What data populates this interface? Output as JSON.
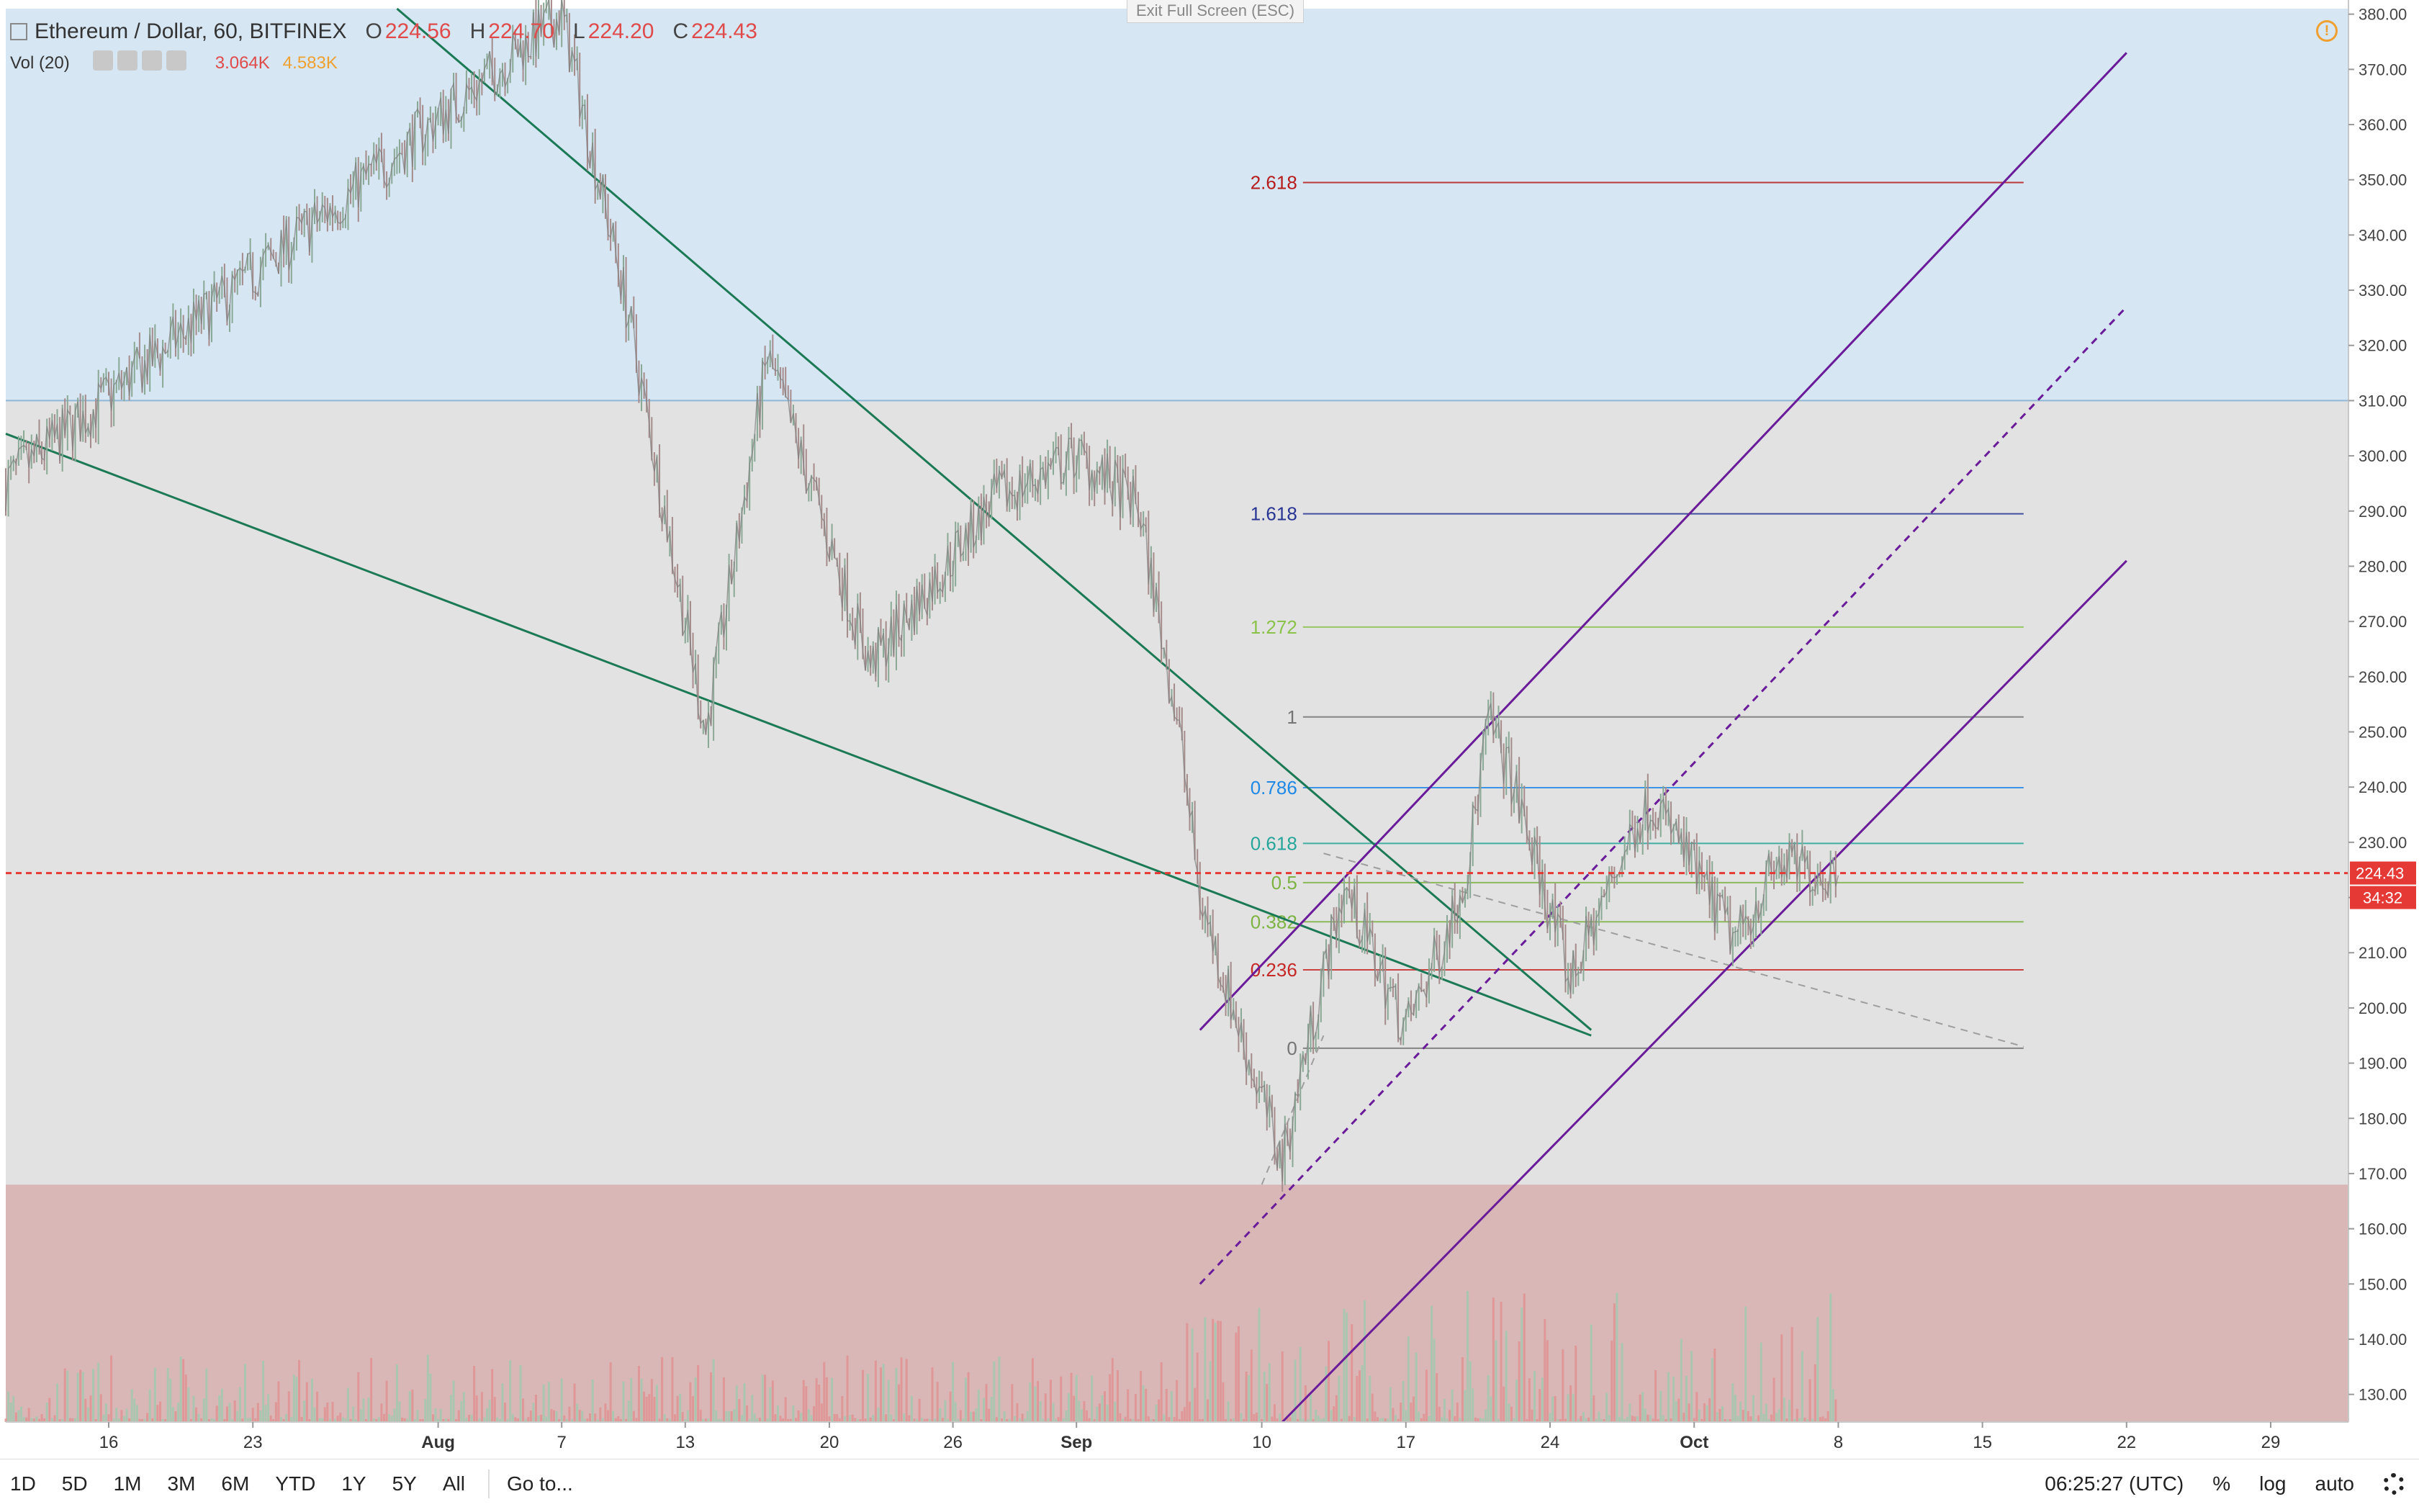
{
  "header": {
    "symbol": "Ethereum / Dollar, 60, BITFINEX",
    "o_label": "O",
    "o_value": "224.56",
    "h_label": "H",
    "h_value": "224.70",
    "l_label": "L",
    "l_value": "224.20",
    "c_label": "C",
    "c_value": "224.43",
    "vol_label": "Vol (20)",
    "vol_value1": "3.064K",
    "vol_value2": "4.583K",
    "exit_fullscreen": "Exit Full Screen (ESC)",
    "alert_icon": "warning-icon"
  },
  "bottom_bar": {
    "ranges": [
      "1D",
      "5D",
      "1M",
      "3M",
      "6M",
      "YTD",
      "1Y",
      "5Y",
      "All"
    ],
    "goto": "Go to...",
    "time": "06:25:27 (UTC)",
    "percent": "%",
    "log": "log",
    "auto": "auto",
    "settings_icon": "gear-icon"
  },
  "chart_data": {
    "type": "line",
    "x": [
      "2018-07-11",
      "2018-08-07",
      "2018-08-10",
      "2018-08-14",
      "2018-08-17",
      "2018-08-22",
      "2018-08-28",
      "2018-09-01",
      "2018-09-04",
      "2018-09-06",
      "2018-09-07",
      "2018-09-09",
      "2018-09-11",
      "2018-09-12",
      "2018-09-14",
      "2018-09-17",
      "2018-09-19",
      "2018-09-20",
      "2018-09-21",
      "2018-09-22",
      "2018-09-25",
      "2018-09-28",
      "2018-09-29",
      "2018-10-03",
      "2018-10-05",
      "2018-10-08"
    ],
    "series": [
      {
        "values": [
          295,
          380,
          330,
          250,
          318,
          262,
          292,
          300,
          291,
          250,
          220,
          195,
          172,
          190,
          222,
          196,
          214,
          226,
          252,
          243,
          205,
          232,
          238,
          212,
          226,
          224
        ]
      }
    ],
    "last_price": "224.43",
    "countdown": "34:32",
    "ylim": [
      125,
      381
    ],
    "yticks": [
      "380.00",
      "370.00",
      "360.00",
      "350.00",
      "340.00",
      "330.00",
      "320.00",
      "310.00",
      "300.00",
      "290.00",
      "280.00",
      "270.00",
      "260.00",
      "250.00",
      "240.00",
      "230.00",
      "220.00",
      "210.00",
      "200.00",
      "190.00",
      "180.00",
      "170.00",
      "160.00",
      "150.00",
      "140.00",
      "130.00"
    ],
    "xticks": [
      {
        "label": "16",
        "date": "2018-07-16"
      },
      {
        "label": "23",
        "date": "2018-07-23"
      },
      {
        "label": "Aug",
        "date": "2018-08-01"
      },
      {
        "label": "7",
        "date": "2018-08-07"
      },
      {
        "label": "13",
        "date": "2018-08-13"
      },
      {
        "label": "20",
        "date": "2018-08-20"
      },
      {
        "label": "26",
        "date": "2018-08-26"
      },
      {
        "label": "Sep",
        "date": "2018-09-01"
      },
      {
        "label": "10",
        "date": "2018-09-10"
      },
      {
        "label": "17",
        "date": "2018-09-17"
      },
      {
        "label": "24",
        "date": "2018-09-24"
      },
      {
        "label": "Oct",
        "date": "2018-10-01"
      },
      {
        "label": "8",
        "date": "2018-10-08"
      },
      {
        "label": "15",
        "date": "2018-10-15"
      },
      {
        "label": "22",
        "date": "2018-10-22"
      },
      {
        "label": "29",
        "date": "2018-10-29"
      }
    ],
    "zones": [
      {
        "from": 310,
        "to": 381,
        "color": "#d6e6f2"
      },
      {
        "from": 168,
        "to": 310,
        "color": "#e2e2e2"
      },
      {
        "from": 125,
        "to": 168,
        "color": "#d9b7b7"
      }
    ],
    "fib_levels": [
      {
        "label": "2.618",
        "price": 349.5,
        "color": "#b71c1c"
      },
      {
        "label": "1.618",
        "price": 289.5,
        "color": "#283593"
      },
      {
        "label": "1.272",
        "price": 269,
        "color": "#8bc34a"
      },
      {
        "label": "1",
        "price": 252.7,
        "color": "#757575"
      },
      {
        "label": "0.786",
        "price": 239.9,
        "color": "#1e88e5"
      },
      {
        "label": "0.618",
        "price": 229.8,
        "color": "#26a69a"
      },
      {
        "label": "0.5",
        "price": 222.7,
        "color": "#7cb342"
      },
      {
        "label": "0.382",
        "price": 215.6,
        "color": "#7cb342"
      },
      {
        "label": "0.236",
        "price": 206.9,
        "color": "#c62828"
      },
      {
        "label": "0",
        "price": 192.7,
        "color": "#757575"
      }
    ],
    "fib_range": {
      "from": "2018-09-12",
      "to": "2018-10-17"
    },
    "trend_lines": [
      {
        "color": "#1b7a55",
        "from": {
          "date": "2018-07-11",
          "price": 304
        },
        "to": {
          "date": "2018-09-26",
          "price": 195
        }
      },
      {
        "color": "#1b7a55",
        "from": {
          "date": "2018-07-30",
          "price": 381
        },
        "to": {
          "date": "2018-09-26",
          "price": 196
        }
      },
      {
        "color": "#9e9e9e",
        "dashed": true,
        "from": {
          "date": "2018-09-13",
          "price": 228
        },
        "to": {
          "date": "2018-10-17",
          "price": 193
        }
      },
      {
        "color": "#9e9e9e",
        "dashed": true,
        "from": {
          "date": "2018-09-10",
          "price": 168
        },
        "to": {
          "date": "2018-09-13",
          "price": 195
        }
      },
      {
        "color": "#6a1b9a",
        "from": {
          "date": "2018-09-07",
          "price": 196
        },
        "to": {
          "date": "2018-10-22",
          "price": 373
        }
      },
      {
        "color": "#6a1b9a",
        "dashed": true,
        "from": {
          "date": "2018-09-07",
          "price": 150
        },
        "to": {
          "date": "2018-10-22",
          "price": 327
        }
      },
      {
        "color": "#6a1b9a",
        "from": {
          "date": "2018-09-11",
          "price": 125
        },
        "to": {
          "date": "2018-10-22",
          "price": 281
        }
      }
    ],
    "volume_max_price": 170
  }
}
